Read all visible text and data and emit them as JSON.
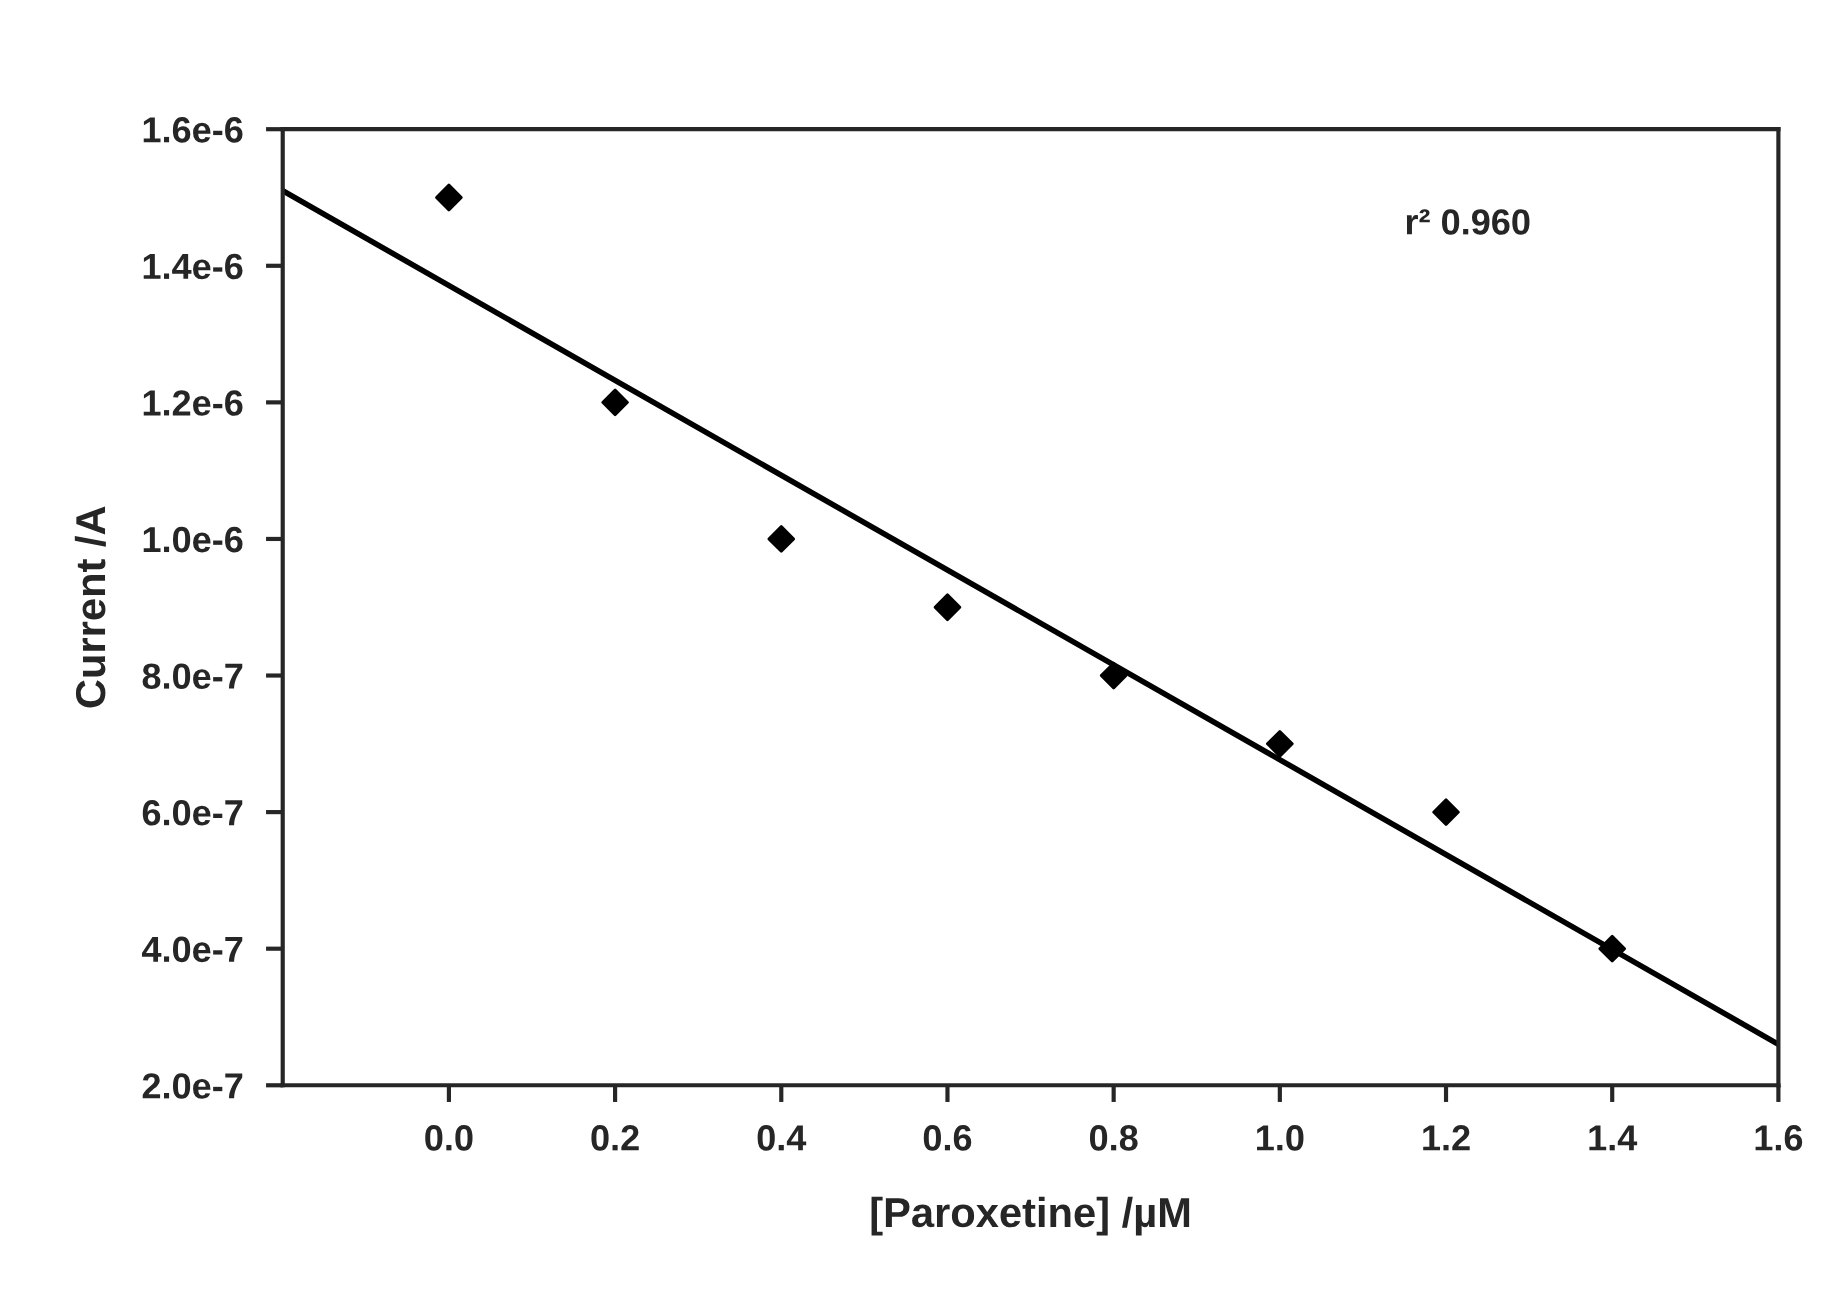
{
  "chart_data": {
    "type": "scatter",
    "xlabel": "[Paroxetine] /µM",
    "ylabel": "Current /A",
    "x": [
      0.0,
      0.2,
      0.4,
      0.6,
      0.8,
      1.0,
      1.2,
      1.4
    ],
    "series": [
      {
        "color": "#000000",
        "marker": "diamond",
        "values": [
          1.5e-06,
          1.2e-06,
          1e-06,
          9e-07,
          8e-07,
          7e-07,
          6e-07,
          4e-07
        ]
      },
      {
        "type": "line",
        "color": "#000000",
        "line_style": "solid",
        "x": [
          -0.2,
          1.6
        ],
        "values": [
          1.51e-06,
          2.6e-07
        ]
      }
    ],
    "xlim": [
      -0.2,
      1.6
    ],
    "xticks": [
      {
        "value": 0.0,
        "label": "0.0"
      },
      0.2,
      0.4,
      0.6,
      0.8,
      {
        "value": 1.0,
        "label": "1.0"
      },
      1.2,
      1.4,
      1.6
    ],
    "ylim": [
      2e-07,
      1.6e-06
    ],
    "yticks": [
      {
        "value": 2e-07,
        "label": "2.0e-7"
      },
      {
        "value": 4e-07,
        "label": "4.0e-7"
      },
      {
        "value": 6e-07,
        "label": "6.0e-7"
      },
      {
        "value": 8e-07,
        "label": "8.0e-7"
      },
      {
        "value": 1e-06,
        "label": "1.0e-6"
      },
      {
        "value": 1.2e-06,
        "label": "1.2e-6"
      },
      {
        "value": 1.4e-06,
        "label": "1.4e-6"
      },
      {
        "value": 1.6e-06,
        "label": "1.6e-6"
      }
    ],
    "annotations": [
      "r² 0.960"
    ],
    "grid": false,
    "legend": false
  }
}
